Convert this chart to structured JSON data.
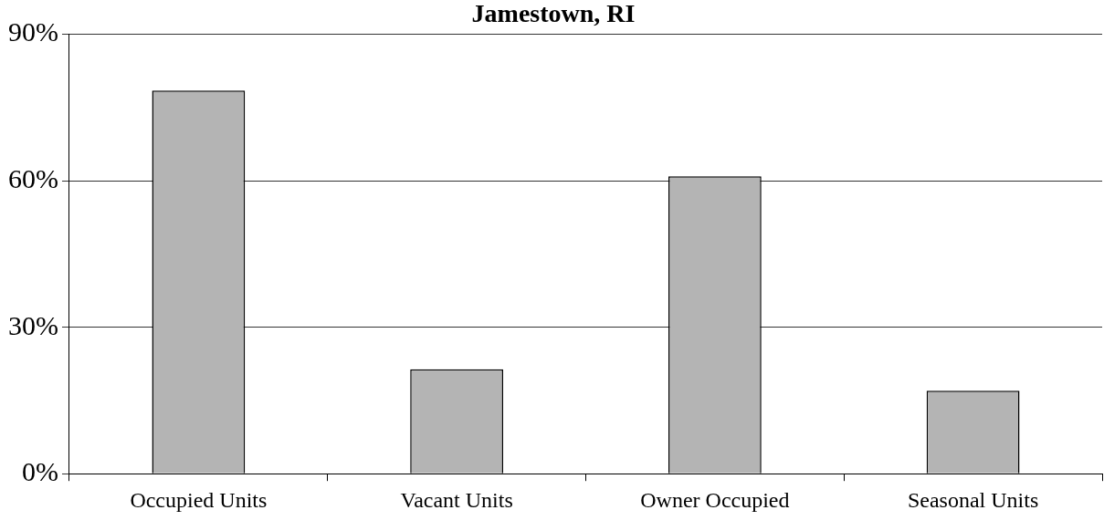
{
  "chart_data": {
    "type": "bar",
    "title": "Jamestown, RI",
    "categories": [
      "Occupied Units",
      "Vacant Units",
      "Owner Occupied",
      "Seasonal Units"
    ],
    "values": [
      78.5,
      21.4,
      60.9,
      17.0
    ],
    "color": "#b4b4b4",
    "ylim": [
      0,
      90
    ],
    "yticks": [
      {
        "value": 0,
        "label": "0%"
      },
      {
        "value": 30,
        "label": "30%"
      },
      {
        "value": 60,
        "label": "60%"
      },
      {
        "value": 90,
        "label": "90%"
      }
    ],
    "grid": "y",
    "legend": false
  }
}
